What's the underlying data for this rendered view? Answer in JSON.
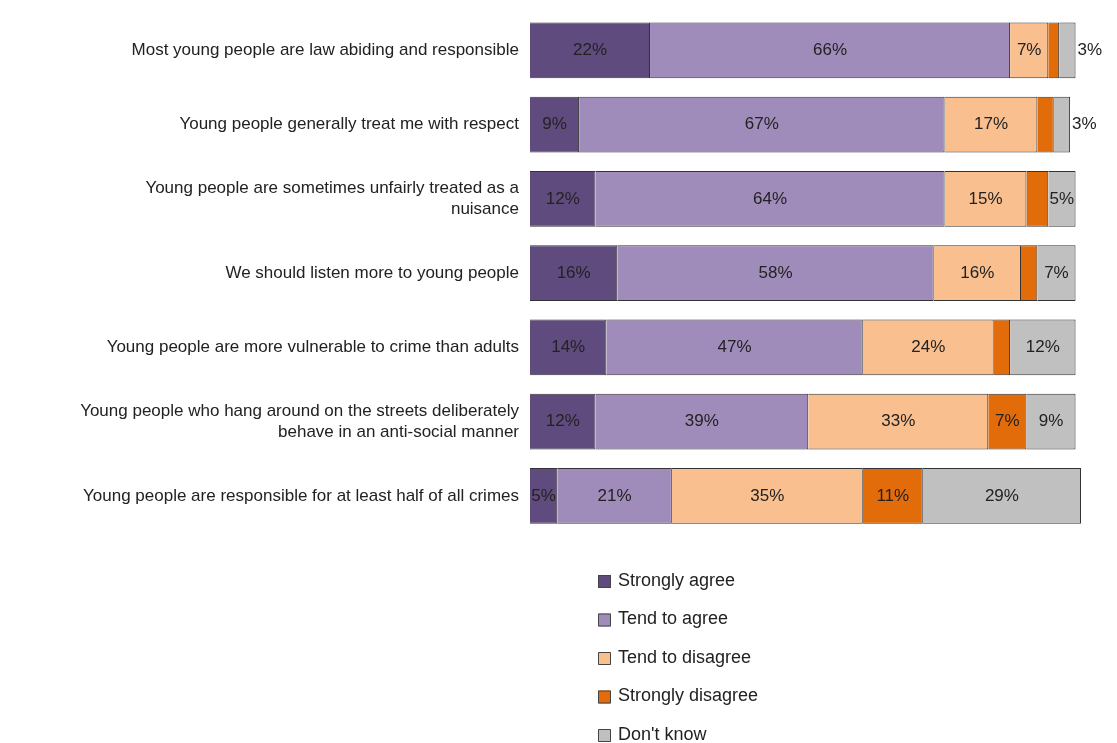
{
  "chart_data": {
    "type": "bar",
    "orientation": "horizontal",
    "stacked": true,
    "legend": "bottom",
    "categories": [
      "Most young people are law abiding and responsible",
      "Young people generally treat me with respect",
      "Young people are sometimes unfairly treated as a nuisance",
      "We should listen more to young people",
      "Young people are more vulnerable to crime than adults",
      "Young people who hang around on the streets deliberately behave in an anti-social manner",
      "Young people are responsible for at least half of all crimes"
    ],
    "series": [
      {
        "name": "Strongly agree",
        "color": "#5f4b7e",
        "values": [
          22,
          9,
          12,
          16,
          14,
          12,
          5
        ],
        "value_labels": [
          "22%",
          "9%",
          "12%",
          "16%",
          "14%",
          "12%",
          "5%"
        ]
      },
      {
        "name": "Tend to agree",
        "color": "#a08cba",
        "values": [
          66,
          67,
          64,
          58,
          47,
          39,
          21
        ],
        "value_labels": [
          "66%",
          "67%",
          "64%",
          "58%",
          "47%",
          "39%",
          "21%"
        ]
      },
      {
        "name": "Tend to disagree",
        "color": "#f9bf8f",
        "values": [
          7,
          17,
          15,
          16,
          24,
          33,
          35
        ],
        "value_labels": [
          "7%",
          "17%",
          "15%",
          "16%",
          "24%",
          "33%",
          "35%"
        ]
      },
      {
        "name": "Strongly disagree",
        "color": "#e36c0a",
        "values": [
          2,
          3,
          4,
          3,
          3,
          7,
          11
        ],
        "value_labels": [
          null,
          null,
          null,
          null,
          null,
          "7%",
          "11%"
        ]
      },
      {
        "name": "Don't know",
        "color": "#c0c0c0",
        "values": [
          3,
          3,
          5,
          7,
          12,
          9,
          29
        ],
        "value_labels": [
          "3%",
          "3%",
          "5%",
          "7%",
          "12%",
          "9%",
          "29%"
        ]
      }
    ]
  }
}
